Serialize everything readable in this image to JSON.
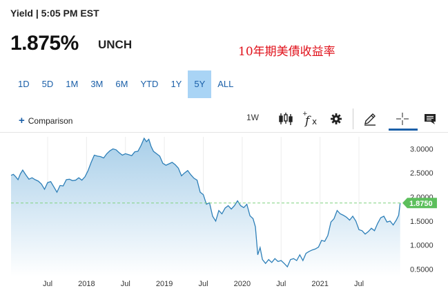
{
  "header": {
    "label": "Yield | 5:05 PM EST",
    "price": "1.875%",
    "change": "UNCH"
  },
  "annotation": "10年期美債收益率",
  "ranges": [
    {
      "label": "1D",
      "active": false
    },
    {
      "label": "5D",
      "active": false
    },
    {
      "label": "1M",
      "active": false
    },
    {
      "label": "3M",
      "active": false
    },
    {
      "label": "6M",
      "active": false
    },
    {
      "label": "YTD",
      "active": false
    },
    {
      "label": "1Y",
      "active": false
    },
    {
      "label": "5Y",
      "active": true
    },
    {
      "label": "ALL",
      "active": false
    }
  ],
  "toolbar": {
    "comparison_label": "Comparison",
    "interval_label": "1W"
  },
  "colors": {
    "accent": "#1a5fa8",
    "line": "#2d7fb8",
    "fill_top": "#a9cfe9",
    "fill_bottom": "#ffffff",
    "last_badge": "#5cbf5c",
    "ref_line": "#7fd17f"
  },
  "chart_data": {
    "type": "area",
    "x_ticks": [
      {
        "label": "Jul",
        "x": 2017.5
      },
      {
        "label": "2018",
        "x": 2018.0
      },
      {
        "label": "Jul",
        "x": 2018.5
      },
      {
        "label": "2019",
        "x": 2019.0
      },
      {
        "label": "Jul",
        "x": 2019.5
      },
      {
        "label": "2020",
        "x": 2020.0
      },
      {
        "label": "Jul",
        "x": 2020.5
      },
      {
        "label": "2021",
        "x": 2021.0
      },
      {
        "label": "Jul",
        "x": 2021.5
      }
    ],
    "y_ticks": [
      "0.5000",
      "1.0000",
      "1.5000",
      "2.0000",
      "2.5000",
      "3.0000"
    ],
    "ylim": [
      0.35,
      3.25
    ],
    "xlim": [
      2017.03,
      2022.05
    ],
    "last_value": 1.875,
    "last_label": "1.8750",
    "series": [
      {
        "x": [
          2017.03,
          2017.06,
          2017.09,
          2017.12,
          2017.15,
          2017.18,
          2017.22,
          2017.26,
          2017.3,
          2017.34,
          2017.38,
          2017.42,
          2017.46,
          2017.5,
          2017.54,
          2017.58,
          2017.62,
          2017.66,
          2017.7,
          2017.74,
          2017.78,
          2017.82,
          2017.86,
          2017.9,
          2017.94,
          2017.98,
          2018.02,
          2018.06,
          2018.1,
          2018.14,
          2018.18,
          2018.22,
          2018.26,
          2018.3,
          2018.34,
          2018.38,
          2018.42,
          2018.46,
          2018.5,
          2018.54,
          2018.58,
          2018.62,
          2018.66,
          2018.7,
          2018.74,
          2018.77,
          2018.8,
          2018.83,
          2018.86,
          2018.9,
          2018.94,
          2018.98,
          2019.02,
          2019.06,
          2019.1,
          2019.14,
          2019.18,
          2019.22,
          2019.26,
          2019.3,
          2019.34,
          2019.38,
          2019.42,
          2019.46,
          2019.5,
          2019.54,
          2019.58,
          2019.62,
          2019.66,
          2019.7,
          2019.74,
          2019.78,
          2019.82,
          2019.86,
          2019.9,
          2019.94,
          2019.98,
          2020.02,
          2020.06,
          2020.1,
          2020.14,
          2020.17,
          2020.2,
          2020.23,
          2020.26,
          2020.3,
          2020.34,
          2020.38,
          2020.42,
          2020.46,
          2020.5,
          2020.54,
          2020.58,
          2020.62,
          2020.66,
          2020.7,
          2020.74,
          2020.78,
          2020.82,
          2020.86,
          2020.9,
          2020.94,
          2020.98,
          2021.02,
          2021.06,
          2021.1,
          2021.14,
          2021.18,
          2021.22,
          2021.26,
          2021.3,
          2021.34,
          2021.38,
          2021.42,
          2021.46,
          2021.5,
          2021.54,
          2021.58,
          2021.62,
          2021.66,
          2021.7,
          2021.74,
          2021.78,
          2021.82,
          2021.86,
          2021.9,
          2021.94,
          2021.98,
          2022.01,
          2022.03
        ],
        "y": [
          2.45,
          2.47,
          2.42,
          2.36,
          2.48,
          2.56,
          2.46,
          2.37,
          2.4,
          2.36,
          2.33,
          2.27,
          2.16,
          2.3,
          2.32,
          2.21,
          2.1,
          2.24,
          2.23,
          2.36,
          2.37,
          2.34,
          2.35,
          2.4,
          2.35,
          2.42,
          2.55,
          2.72,
          2.87,
          2.85,
          2.84,
          2.81,
          2.9,
          2.96,
          3.0,
          2.98,
          2.92,
          2.87,
          2.9,
          2.88,
          2.86,
          2.94,
          2.95,
          3.07,
          3.22,
          3.15,
          3.2,
          3.05,
          2.95,
          2.9,
          2.85,
          2.7,
          2.66,
          2.69,
          2.72,
          2.67,
          2.6,
          2.44,
          2.5,
          2.55,
          2.46,
          2.39,
          2.35,
          2.1,
          2.05,
          1.85,
          1.88,
          1.6,
          1.5,
          1.72,
          1.65,
          1.77,
          1.82,
          1.75,
          1.82,
          1.92,
          1.82,
          1.78,
          1.85,
          1.61,
          1.55,
          1.38,
          0.8,
          0.95,
          0.7,
          0.62,
          0.7,
          0.64,
          0.72,
          0.66,
          0.68,
          0.62,
          0.55,
          0.7,
          0.72,
          0.68,
          0.8,
          0.68,
          0.83,
          0.87,
          0.9,
          0.92,
          0.96,
          1.1,
          1.08,
          1.2,
          1.48,
          1.55,
          1.72,
          1.65,
          1.62,
          1.58,
          1.52,
          1.6,
          1.5,
          1.32,
          1.3,
          1.23,
          1.28,
          1.35,
          1.3,
          1.45,
          1.57,
          1.6,
          1.48,
          1.5,
          1.42,
          1.52,
          1.62,
          1.875
        ]
      }
    ]
  }
}
